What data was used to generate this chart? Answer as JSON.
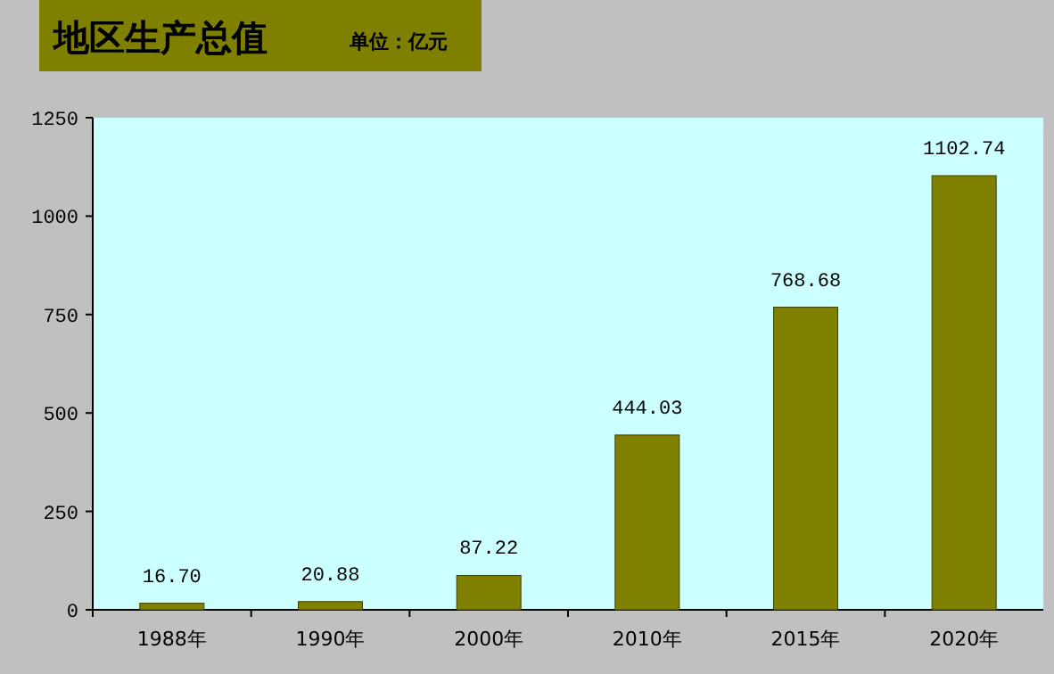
{
  "chart_data": {
    "type": "bar",
    "title": "地区生产总值",
    "subtitle": "单位：亿元",
    "categories": [
      "1988年",
      "1990年",
      "2000年",
      "2010年",
      "2015年",
      "2020年"
    ],
    "values": [
      16.7,
      20.88,
      87.22,
      444.03,
      768.68,
      1102.74
    ],
    "value_labels": [
      "16.70",
      "20.88",
      "87.22",
      "444.03",
      "768.68",
      "1102.74"
    ],
    "color": "#808000",
    "ylim": [
      0,
      1250
    ],
    "yticks": [
      0,
      250,
      500,
      750,
      1000,
      1250
    ],
    "grid": false
  }
}
